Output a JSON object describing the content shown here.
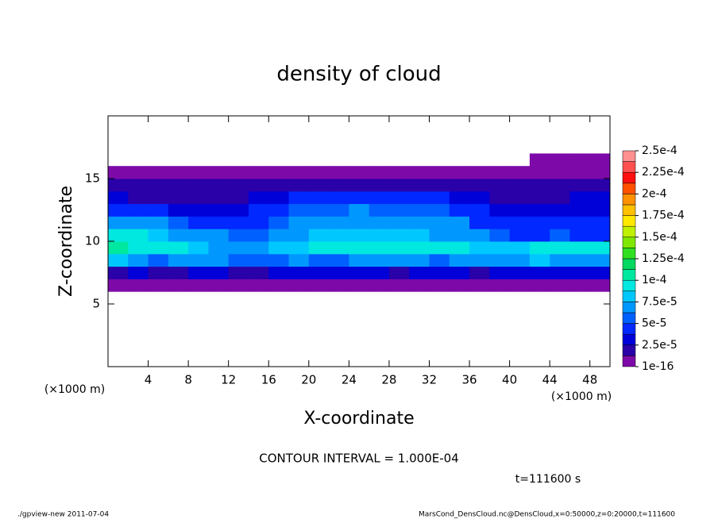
{
  "chart_data": {
    "type": "heatmap",
    "title": "density of cloud",
    "xlabel": "X-coordinate",
    "ylabel": "Z-coordinate",
    "x_unit": "(×1000 m)",
    "contour_note": "CONTOUR INTERVAL = 1.000E-04",
    "time_note": "t=111600 s",
    "footer_left": "./gpview-new  2011-07-04",
    "footer_right": "MarsCond_DensCloud.nc@DensCloud,x=0:50000,z=0:20000,t=111600",
    "xlim": [
      0,
      50
    ],
    "ylim": [
      0,
      20
    ],
    "xticks": [
      4,
      8,
      12,
      16,
      20,
      24,
      28,
      32,
      36,
      40,
      44,
      48
    ],
    "yticks": [
      5,
      10,
      15
    ],
    "xbins": [
      0,
      2,
      4,
      6,
      8,
      10,
      12,
      14,
      16,
      18,
      20,
      22,
      24,
      26,
      28,
      30,
      32,
      34,
      36,
      38,
      40,
      42,
      44,
      46,
      48,
      50
    ],
    "ybins": [
      6,
      7,
      8,
      9,
      10,
      11,
      12,
      13,
      14,
      15,
      16,
      17
    ],
    "z": [
      [
        4e-06,
        4e-06,
        4e-06,
        4e-06,
        4e-06,
        4e-06,
        4e-06,
        4e-06,
        4e-06,
        4e-06,
        4e-06,
        4e-06,
        4e-06,
        4e-06,
        4e-06,
        4e-06,
        4e-06,
        4e-06,
        4e-06,
        4e-06,
        4e-06,
        4e-06,
        4e-06,
        4e-06,
        4e-06
      ],
      [
        2.5e-05,
        3e-05,
        2e-05,
        2.5e-05,
        3e-05,
        3e-05,
        2.5e-05,
        2e-05,
        3e-05,
        3e-05,
        3.5e-05,
        3e-05,
        3e-05,
        3e-05,
        2.5e-05,
        3e-05,
        3e-05,
        3e-05,
        2.5e-05,
        3e-05,
        3.5e-05,
        3e-05,
        3e-05,
        3e-05,
        3e-05
      ],
      [
        8e-05,
        7e-05,
        6e-05,
        6.5e-05,
        7e-05,
        7e-05,
        6e-05,
        5.5e-05,
        6e-05,
        6.5e-05,
        6e-05,
        6e-05,
        6.5e-05,
        7e-05,
        7e-05,
        6.5e-05,
        6e-05,
        6.5e-05,
        7e-05,
        7.5e-05,
        7.5e-05,
        8e-05,
        7.5e-05,
        7.5e-05,
        7.5e-05
      ],
      [
        0.000105,
        9.5e-05,
        9e-05,
        9e-05,
        8.5e-05,
        7.5e-05,
        6.5e-05,
        7e-05,
        8e-05,
        8.5e-05,
        9e-05,
        9.5e-05,
        0.0001,
        9.5e-05,
        9.5e-05,
        9e-05,
        9.5e-05,
        9e-05,
        8.5e-05,
        8e-05,
        8.5e-05,
        9e-05,
        9.5e-05,
        9e-05,
        9e-05
      ],
      [
        0.0001,
        9e-05,
        8.5e-05,
        7.5e-05,
        7e-05,
        6.5e-05,
        6e-05,
        6e-05,
        7e-05,
        7.5e-05,
        8e-05,
        8.5e-05,
        8.5e-05,
        8e-05,
        8.5e-05,
        8e-05,
        7.5e-05,
        7e-05,
        6.5e-05,
        5.5e-05,
        5e-05,
        5e-05,
        5.5e-05,
        5e-05,
        5e-05
      ],
      [
        7e-05,
        7.5e-05,
        7e-05,
        6e-05,
        5e-05,
        5e-05,
        4.5e-05,
        5e-05,
        6e-05,
        6.5e-05,
        7e-05,
        7e-05,
        7.5e-05,
        7e-05,
        7e-05,
        7.5e-05,
        7e-05,
        6.5e-05,
        5e-05,
        4e-05,
        4e-05,
        4e-05,
        4e-05,
        4e-05,
        4e-05
      ],
      [
        4e-05,
        4.5e-05,
        4e-05,
        3.5e-05,
        3.5e-05,
        3.5e-05,
        3.5e-05,
        4e-05,
        5e-05,
        5.5e-05,
        6e-05,
        6e-05,
        6.5e-05,
        6e-05,
        5.5e-05,
        6e-05,
        5.5e-05,
        5e-05,
        4e-05,
        3.5e-05,
        3e-05,
        3e-05,
        3e-05,
        3e-05,
        3e-05
      ],
      [
        3e-05,
        2.5e-05,
        2.5e-05,
        2.5e-05,
        2.5e-05,
        2.5e-05,
        2.5e-05,
        3e-05,
        3.5e-05,
        4e-05,
        4e-05,
        4e-05,
        4.5e-05,
        4e-05,
        4e-05,
        4e-05,
        4e-05,
        3.5e-05,
        3e-05,
        2.5e-05,
        2.5e-05,
        2.5e-05,
        2.5e-05,
        3e-05,
        3e-05
      ],
      [
        1.8e-05,
        1.8e-05,
        1.8e-05,
        1.8e-05,
        1.8e-05,
        1.8e-05,
        1.8e-05,
        1.8e-05,
        2e-05,
        2e-05,
        2e-05,
        2e-05,
        2e-05,
        2e-05,
        2e-05,
        2e-05,
        2e-05,
        1.8e-05,
        1.8e-05,
        1.8e-05,
        1.8e-05,
        1.8e-05,
        1.8e-05,
        1.8e-05,
        1.8e-05
      ],
      [
        8e-06,
        8e-06,
        8e-06,
        8e-06,
        8e-06,
        8e-06,
        8e-06,
        8e-06,
        8e-06,
        8e-06,
        8e-06,
        8e-06,
        8e-06,
        8e-06,
        8e-06,
        8e-06,
        8e-06,
        8e-06,
        8e-06,
        8e-06,
        8e-06,
        8e-06,
        8e-06,
        8e-06,
        8e-06
      ],
      [
        null,
        null,
        null,
        null,
        null,
        null,
        null,
        null,
        null,
        null,
        null,
        null,
        null,
        null,
        null,
        null,
        null,
        null,
        null,
        null,
        null,
        4e-06,
        4e-06,
        4e-06,
        4e-06
      ]
    ],
    "clim": [
      1e-16,
      0.00025
    ],
    "colorbar_ticks": [
      1e-16,
      {
        "value": 2.5e-05,
        "label": "2.5e-5"
      },
      {
        "value": 5e-05,
        "label": "5e-5"
      },
      {
        "value": 7.5e-05,
        "label": "7.5e-5"
      },
      {
        "value": 0.0001,
        "label": "1e-4"
      },
      {
        "value": 0.000125,
        "label": "1.25e-4"
      },
      {
        "value": 0.00015,
        "label": "1.5e-4"
      },
      {
        "value": 0.000175,
        "label": "1.75e-4"
      },
      {
        "value": 0.0002,
        "label": "2e-4"
      },
      {
        "value": 0.000225,
        "label": "2.25e-4"
      },
      {
        "value": 0.00025,
        "label": "2.5e-4"
      }
    ],
    "colors": [
      "#7d0aa8",
      "#2a00a8",
      "#0000d8",
      "#0028ff",
      "#0060ff",
      "#0098ff",
      "#00c8ff",
      "#00e8e0",
      "#00e8a0",
      "#00d860",
      "#30e020",
      "#80e800",
      "#c0f000",
      "#ffe800",
      "#ffc000",
      "#ff9000",
      "#ff5000",
      "#ff1010",
      "#ff5050",
      "#ff9090"
    ]
  }
}
